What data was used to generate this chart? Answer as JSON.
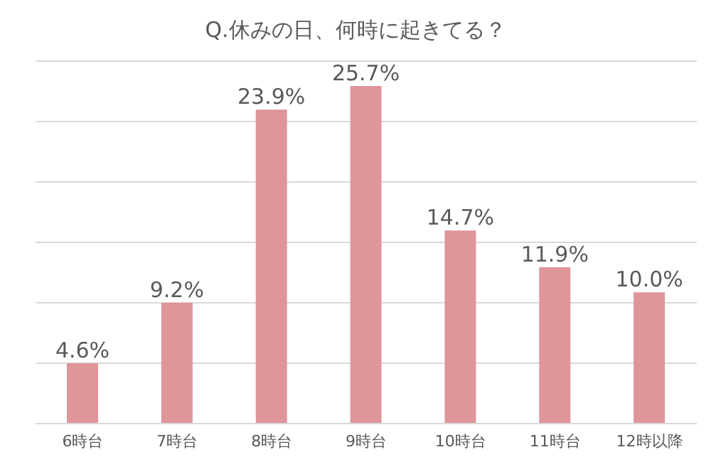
{
  "chart_data": {
    "type": "bar",
    "title": "Q.休みの日、何時に起きてる？",
    "categories": [
      "6時台",
      "7時台",
      "8時台",
      "9時台",
      "10時台",
      "11時台",
      "12時以降"
    ],
    "values": [
      4.6,
      9.2,
      23.9,
      25.7,
      14.7,
      11.9,
      10.0
    ],
    "value_labels": [
      "4.6%",
      "9.2%",
      "23.9%",
      "25.7%",
      "14.7%",
      "11.9%",
      "10.0%"
    ],
    "color": "#e0959b",
    "ylim": [
      0,
      27.6
    ],
    "yticks": [
      {
        "value": 0,
        "label": null
      },
      {
        "value": 4.6,
        "label": null
      },
      {
        "value": 9.2,
        "label": null
      },
      {
        "value": 13.8,
        "label": null
      },
      {
        "value": 18.4,
        "label": null
      },
      {
        "value": 23,
        "label": null
      },
      {
        "value": 27.6,
        "label": null
      }
    ],
    "grid": "y",
    "tick_labels": "x"
  }
}
